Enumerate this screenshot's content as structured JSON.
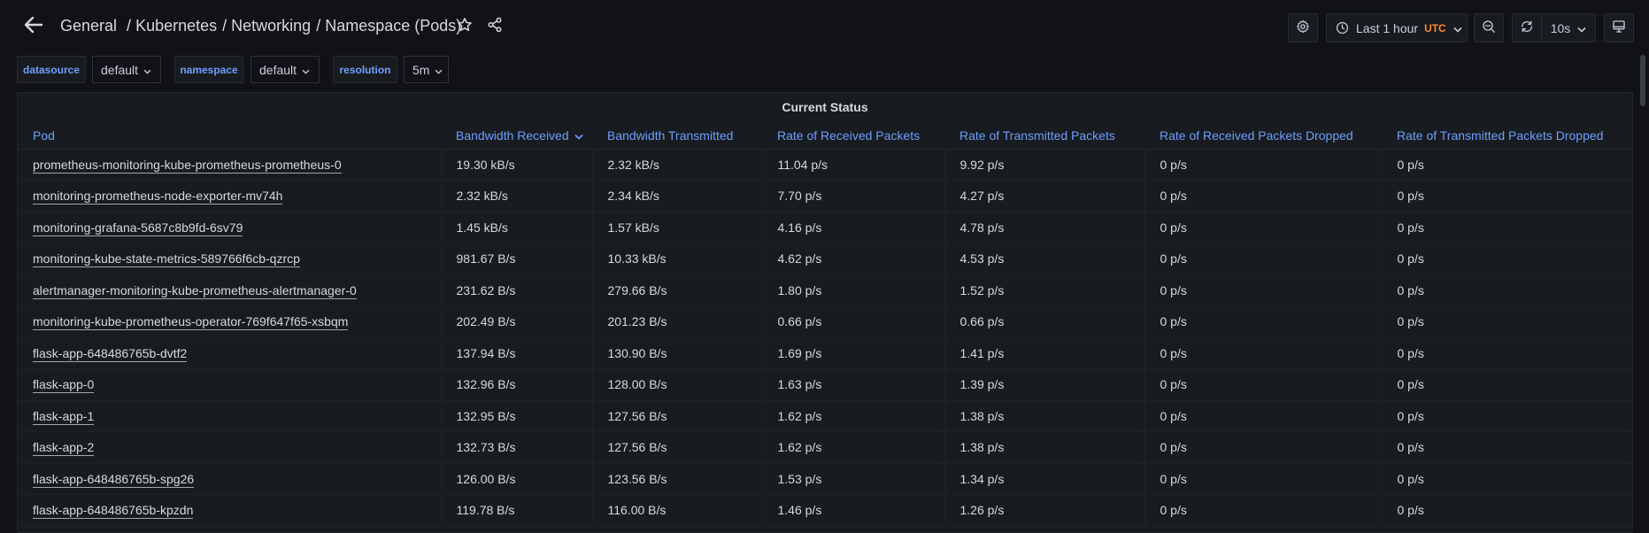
{
  "header": {
    "breadcrumb": [
      "General",
      "Kubernetes",
      "Networking",
      "Namespace (Pods)"
    ],
    "time_range": "Last 1 hour",
    "timezone": "UTC",
    "refresh_interval": "10s"
  },
  "icons": {
    "back": "arrow-left-icon",
    "star": "star-icon",
    "share": "share-icon",
    "settings": "gear-icon",
    "clock": "clock-icon",
    "zoom_out": "zoom-out-icon",
    "refresh": "refresh-icon",
    "tv": "monitor-icon"
  },
  "variables": [
    {
      "label": "datasource",
      "value": "default"
    },
    {
      "label": "namespace",
      "value": "default"
    },
    {
      "label": "resolution",
      "value": "5m"
    }
  ],
  "panel": {
    "title": "Current Status",
    "columns": [
      "Pod",
      "Bandwidth Received",
      "Bandwidth Transmitted",
      "Rate of Received Packets",
      "Rate of Transmitted Packets",
      "Rate of Received Packets Dropped",
      "Rate of Transmitted Packets Dropped"
    ],
    "sorted_column": "Bandwidth Received",
    "rows": [
      [
        "prometheus-monitoring-kube-prometheus-prometheus-0",
        "19.30 kB/s",
        "2.32 kB/s",
        "11.04 p/s",
        "9.92 p/s",
        "0 p/s",
        "0 p/s"
      ],
      [
        "monitoring-prometheus-node-exporter-mv74h",
        "2.32 kB/s",
        "2.34 kB/s",
        "7.70 p/s",
        "4.27 p/s",
        "0 p/s",
        "0 p/s"
      ],
      [
        "monitoring-grafana-5687c8b9fd-6sv79",
        "1.45 kB/s",
        "1.57 kB/s",
        "4.16 p/s",
        "4.78 p/s",
        "0 p/s",
        "0 p/s"
      ],
      [
        "monitoring-kube-state-metrics-589766f6cb-qzrcp",
        "981.67 B/s",
        "10.33 kB/s",
        "4.62 p/s",
        "4.53 p/s",
        "0 p/s",
        "0 p/s"
      ],
      [
        "alertmanager-monitoring-kube-prometheus-alertmanager-0",
        "231.62 B/s",
        "279.66 B/s",
        "1.80 p/s",
        "1.52 p/s",
        "0 p/s",
        "0 p/s"
      ],
      [
        "monitoring-kube-prometheus-operator-769f647f65-xsbqm",
        "202.49 B/s",
        "201.23 B/s",
        "0.66 p/s",
        "0.66 p/s",
        "0 p/s",
        "0 p/s"
      ],
      [
        "flask-app-648486765b-dvtf2",
        "137.94 B/s",
        "130.90 B/s",
        "1.69 p/s",
        "1.41 p/s",
        "0 p/s",
        "0 p/s"
      ],
      [
        "flask-app-0",
        "132.96 B/s",
        "128.00 B/s",
        "1.63 p/s",
        "1.39 p/s",
        "0 p/s",
        "0 p/s"
      ],
      [
        "flask-app-1",
        "132.95 B/s",
        "127.56 B/s",
        "1.62 p/s",
        "1.38 p/s",
        "0 p/s",
        "0 p/s"
      ],
      [
        "flask-app-2",
        "132.73 B/s",
        "127.56 B/s",
        "1.62 p/s",
        "1.38 p/s",
        "0 p/s",
        "0 p/s"
      ],
      [
        "flask-app-648486765b-spg26",
        "126.00 B/s",
        "123.56 B/s",
        "1.53 p/s",
        "1.34 p/s",
        "0 p/s",
        "0 p/s"
      ],
      [
        "flask-app-648486765b-kpzdn",
        "119.78 B/s",
        "116.00 B/s",
        "1.46 p/s",
        "1.26 p/s",
        "0 p/s",
        "0 p/s"
      ]
    ]
  },
  "colors": {
    "background": "#111217",
    "panel": "#181b1f",
    "link_blue": "#6e9fff",
    "utc_orange": "#ff8833"
  }
}
